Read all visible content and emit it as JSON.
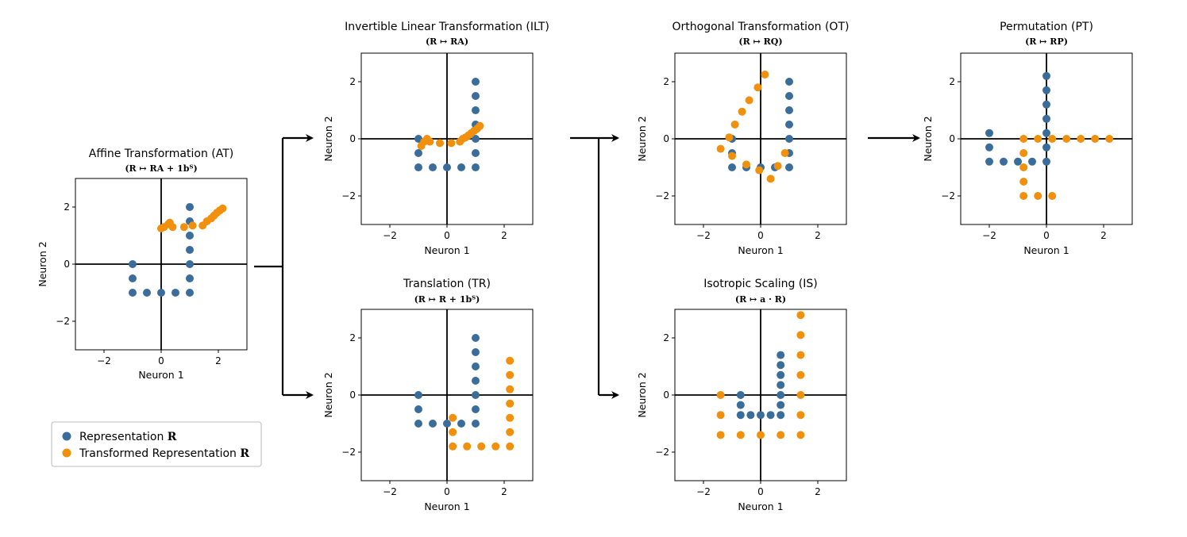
{
  "colors": {
    "representation": "#3a6d9a",
    "transformed": "#f0900c",
    "axis": "#000000"
  },
  "legend": {
    "placement": "bottom-left",
    "items": [
      {
        "label": "Representation",
        "math": "R",
        "color": "#3a6d9a"
      },
      {
        "label": "Transformed Representation",
        "math": "R",
        "color": "#f0900c"
      }
    ]
  },
  "chart_data": [
    {
      "id": "at",
      "type": "scatter",
      "title": "Affine Transformation (AT)",
      "subtitle": "(R ↦ RA + 1bᵀ)",
      "xlabel": "Neuron 1",
      "ylabel": "Neuron 2",
      "xlim": [
        -3,
        3
      ],
      "ylim": [
        -3,
        3
      ],
      "xticks": [
        -2,
        0,
        2
      ],
      "yticks": [
        -2,
        0,
        2
      ],
      "grid": false,
      "series": [
        {
          "role": "representation",
          "points": [
            [
              -1,
              0
            ],
            [
              -1,
              -0.5
            ],
            [
              -1,
              -1
            ],
            [
              -0.5,
              -1
            ],
            [
              0,
              -1
            ],
            [
              0.5,
              -1
            ],
            [
              1,
              -1
            ],
            [
              1,
              -0.5
            ],
            [
              1,
              0
            ],
            [
              1,
              0.5
            ],
            [
              1,
              1
            ],
            [
              1,
              1.5
            ],
            [
              1,
              2
            ]
          ]
        },
        {
          "role": "transformed",
          "points": [
            [
              0,
              1.25
            ],
            [
              0.1,
              1.3
            ],
            [
              0.25,
              1.4
            ],
            [
              0.3,
              1.45
            ],
            [
              0.4,
              1.3
            ],
            [
              0.8,
              1.3
            ],
            [
              1.1,
              1.35
            ],
            [
              1.45,
              1.35
            ],
            [
              1.6,
              1.5
            ],
            [
              1.75,
              1.6
            ],
            [
              1.85,
              1.7
            ],
            [
              1.95,
              1.8
            ],
            [
              2.05,
              1.88
            ],
            [
              2.15,
              1.95
            ]
          ]
        }
      ]
    },
    {
      "id": "ilt",
      "type": "scatter",
      "title": "Invertible Linear Transformation (ILT)",
      "subtitle": "(R ↦ RA)",
      "xlabel": "Neuron 1",
      "ylabel": "Neuron 2",
      "xlim": [
        -3,
        3
      ],
      "ylim": [
        -3,
        3
      ],
      "xticks": [
        -2,
        0,
        2
      ],
      "yticks": [
        -2,
        0,
        2
      ],
      "grid": false,
      "series": [
        {
          "role": "representation",
          "points": [
            [
              -1,
              0
            ],
            [
              -1,
              -0.5
            ],
            [
              -1,
              -1
            ],
            [
              -0.5,
              -1
            ],
            [
              0,
              -1
            ],
            [
              0.5,
              -1
            ],
            [
              1,
              -1
            ],
            [
              1,
              -0.5
            ],
            [
              1,
              0
            ],
            [
              1,
              0.5
            ],
            [
              1,
              1
            ],
            [
              1,
              1.5
            ],
            [
              1,
              2
            ]
          ]
        },
        {
          "role": "transformed",
          "points": [
            [
              -0.9,
              -0.25
            ],
            [
              -0.8,
              -0.1
            ],
            [
              -0.7,
              0
            ],
            [
              -0.6,
              -0.1
            ],
            [
              -0.25,
              -0.15
            ],
            [
              0.15,
              -0.15
            ],
            [
              0.45,
              -0.1
            ],
            [
              0.55,
              0
            ],
            [
              0.65,
              0.05
            ],
            [
              0.75,
              0.12
            ],
            [
              0.85,
              0.2
            ],
            [
              0.95,
              0.28
            ],
            [
              1.05,
              0.35
            ],
            [
              1.15,
              0.45
            ]
          ]
        }
      ]
    },
    {
      "id": "tr",
      "type": "scatter",
      "title": "Translation (TR)",
      "subtitle": "(R ↦ R + 1bᵀ)",
      "xlabel": "Neuron 1",
      "ylabel": "Neuron 2",
      "xlim": [
        -3,
        3
      ],
      "ylim": [
        -3,
        3
      ],
      "xticks": [
        -2,
        0,
        2
      ],
      "yticks": [
        -2,
        0,
        2
      ],
      "grid": false,
      "series": [
        {
          "role": "representation",
          "points": [
            [
              -1,
              0
            ],
            [
              -1,
              -0.5
            ],
            [
              -1,
              -1
            ],
            [
              -0.5,
              -1
            ],
            [
              0,
              -1
            ],
            [
              0.5,
              -1
            ],
            [
              1,
              -1
            ],
            [
              1,
              -0.5
            ],
            [
              1,
              0
            ],
            [
              1,
              0.5
            ],
            [
              1,
              1
            ],
            [
              1,
              1.5
            ],
            [
              1,
              2
            ]
          ]
        },
        {
          "role": "transformed",
          "points": [
            [
              0.2,
              -0.8
            ],
            [
              0.2,
              -1.3
            ],
            [
              0.2,
              -1.8
            ],
            [
              0.7,
              -1.8
            ],
            [
              1.2,
              -1.8
            ],
            [
              1.7,
              -1.8
            ],
            [
              2.2,
              -1.8
            ],
            [
              2.2,
              -1.3
            ],
            [
              2.2,
              -0.8
            ],
            [
              2.2,
              -0.3
            ],
            [
              2.2,
              0.2
            ],
            [
              2.2,
              0.7
            ],
            [
              2.2,
              1.2
            ]
          ]
        }
      ]
    },
    {
      "id": "ot",
      "type": "scatter",
      "title": "Orthogonal Transformation (OT)",
      "subtitle": "(R ↦ RQ)",
      "xlabel": "Neuron 1",
      "ylabel": "Neuron 2",
      "xlim": [
        -3,
        3
      ],
      "ylim": [
        -3,
        3
      ],
      "xticks": [
        -2,
        0,
        2
      ],
      "yticks": [
        -2,
        0,
        2
      ],
      "grid": false,
      "series": [
        {
          "role": "representation",
          "points": [
            [
              -1,
              0
            ],
            [
              -1,
              -0.5
            ],
            [
              -1,
              -1
            ],
            [
              -0.5,
              -1
            ],
            [
              0,
              -1
            ],
            [
              0.5,
              -1
            ],
            [
              1,
              -1
            ],
            [
              1,
              -0.5
            ],
            [
              1,
              0
            ],
            [
              1,
              0.5
            ],
            [
              1,
              1
            ],
            [
              1,
              1.5
            ],
            [
              1,
              2
            ]
          ]
        },
        {
          "role": "transformed",
          "points": [
            [
              -1.4,
              -0.35
            ],
            [
              -1.1,
              0.05
            ],
            [
              -0.9,
              0.5
            ],
            [
              -0.65,
              0.95
            ],
            [
              -0.4,
              1.35
            ],
            [
              -0.1,
              1.8
            ],
            [
              0.15,
              2.25
            ],
            [
              -1,
              -0.6
            ],
            [
              -0.5,
              -0.9
            ],
            [
              -0.05,
              -1.1
            ],
            [
              0.35,
              -1.4
            ],
            [
              0.6,
              -0.95
            ],
            [
              0.85,
              -0.5
            ]
          ]
        }
      ]
    },
    {
      "id": "is",
      "type": "scatter",
      "title": "Isotropic Scaling (IS)",
      "subtitle": "(R ↦ a · R)",
      "xlabel": "Neuron 1",
      "ylabel": "Neuron 2",
      "xlim": [
        -3,
        3
      ],
      "ylim": [
        -3,
        3
      ],
      "xticks": [
        -2,
        0,
        2
      ],
      "yticks": [
        -2,
        0,
        2
      ],
      "grid": false,
      "series": [
        {
          "role": "representation",
          "points": [
            [
              -0.7,
              0
            ],
            [
              -0.7,
              -0.35
            ],
            [
              -0.7,
              -0.7
            ],
            [
              -0.35,
              -0.7
            ],
            [
              0,
              -0.7
            ],
            [
              0.35,
              -0.7
            ],
            [
              0.7,
              -0.7
            ],
            [
              0.7,
              -0.35
            ],
            [
              0.7,
              0
            ],
            [
              0.7,
              0.35
            ],
            [
              0.7,
              0.7
            ],
            [
              0.7,
              1.05
            ],
            [
              0.7,
              1.4
            ]
          ]
        },
        {
          "role": "transformed",
          "points": [
            [
              -1.4,
              0
            ],
            [
              -1.4,
              -0.7
            ],
            [
              -1.4,
              -1.4
            ],
            [
              -0.7,
              -1.4
            ],
            [
              0,
              -1.4
            ],
            [
              0.7,
              -1.4
            ],
            [
              1.4,
              -1.4
            ],
            [
              1.4,
              -0.7
            ],
            [
              1.4,
              0
            ],
            [
              1.4,
              0.7
            ],
            [
              1.4,
              1.4
            ],
            [
              1.4,
              2.1
            ],
            [
              1.4,
              2.8
            ]
          ]
        }
      ]
    },
    {
      "id": "pt",
      "type": "scatter",
      "title": "Permutation (PT)",
      "subtitle": "(R ↦ RP)",
      "xlabel": "Neuron 1",
      "ylabel": "Neuron 2",
      "xlim": [
        -3,
        3
      ],
      "ylim": [
        -3,
        3
      ],
      "xticks": [
        -2,
        0,
        2
      ],
      "yticks": [
        -2,
        0,
        2
      ],
      "grid": false,
      "series": [
        {
          "role": "representation",
          "points": [
            [
              -2,
              0.2
            ],
            [
              -2,
              -0.3
            ],
            [
              -2,
              -0.8
            ],
            [
              -1.5,
              -0.8
            ],
            [
              -1,
              -0.8
            ],
            [
              -0.5,
              -0.8
            ],
            [
              0,
              -0.8
            ],
            [
              0,
              -0.3
            ],
            [
              0,
              0.2
            ],
            [
              0,
              0.7
            ],
            [
              0,
              1.2
            ],
            [
              0,
              1.7
            ],
            [
              0,
              2.2
            ]
          ]
        },
        {
          "role": "transformed",
          "points": [
            [
              -0.8,
              0
            ],
            [
              -0.8,
              -0.5
            ],
            [
              -0.8,
              -1
            ],
            [
              -0.8,
              -1.5
            ],
            [
              -0.8,
              -2
            ],
            [
              -0.3,
              -2
            ],
            [
              0.2,
              -2
            ],
            [
              0.2,
              0
            ],
            [
              0.7,
              0
            ],
            [
              1.2,
              0
            ],
            [
              1.7,
              0
            ],
            [
              2.2,
              0
            ],
            [
              -0.3,
              0
            ]
          ]
        }
      ]
    }
  ]
}
